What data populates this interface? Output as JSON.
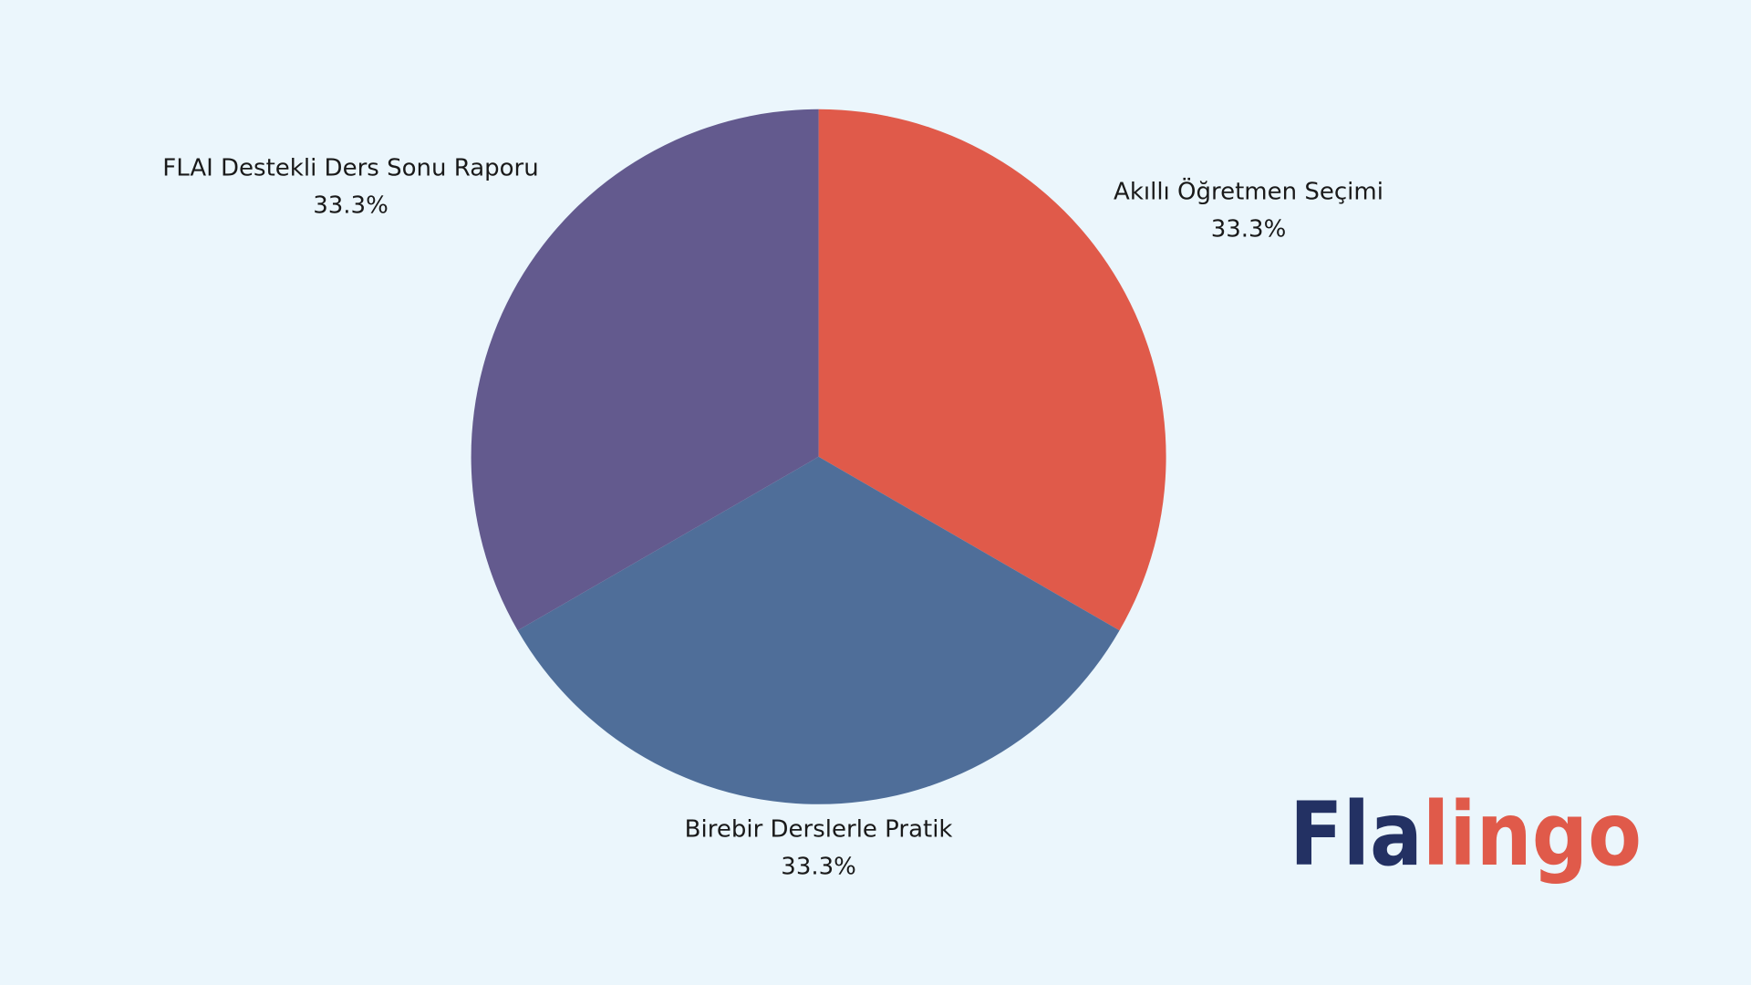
{
  "chart_data": {
    "type": "pie",
    "categories": [
      "Akıllı Öğretmen Seçimi",
      "Birebir Derslerle Pratik",
      "FLAI Destekli Ders Sonu Raporu"
    ],
    "values": [
      33.3,
      33.3,
      33.3
    ],
    "value_labels": [
      "33.3%",
      "33.3%",
      "33.3%"
    ],
    "colors": [
      "#e05a4a",
      "#4f6e99",
      "#635a8e"
    ]
  },
  "logo": [
    "Fla",
    "lingo"
  ]
}
